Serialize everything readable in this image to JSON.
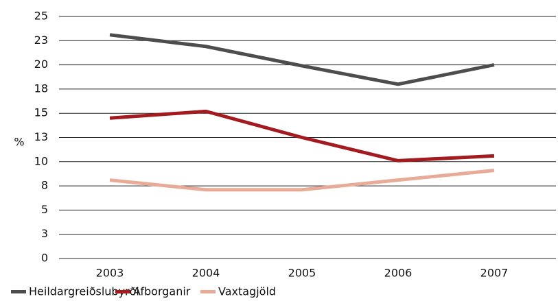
{
  "chart_data": {
    "type": "line",
    "y_label": "%",
    "categories": [
      "2003",
      "2004",
      "2005",
      "2006",
      "2007"
    ],
    "series": [
      {
        "name": "Heildargreiðslubyrði",
        "color": "#4d4d4d",
        "values": [
          23.1,
          21.9,
          19.9,
          18.0,
          20.0
        ]
      },
      {
        "name": "Afborganir",
        "color": "#a31a1f",
        "values": [
          14.5,
          15.2,
          12.5,
          10.1,
          10.6
        ]
      },
      {
        "name": "Vaxtagjöld",
        "color": "#e8ab98",
        "values": [
          8.1,
          7.1,
          7.1,
          8.1,
          9.1
        ]
      }
    ],
    "ylim": [
      0,
      25
    ],
    "yticks": [
      0,
      {
        "value": 2.5,
        "label": "3"
      },
      5,
      {
        "value": 7.5,
        "label": "8"
      },
      10,
      {
        "value": 12.5,
        "label": "13"
      },
      15,
      {
        "value": 17.5,
        "label": "18"
      },
      20,
      {
        "value": 22.5,
        "label": "23"
      },
      25
    ],
    "grid": true
  }
}
